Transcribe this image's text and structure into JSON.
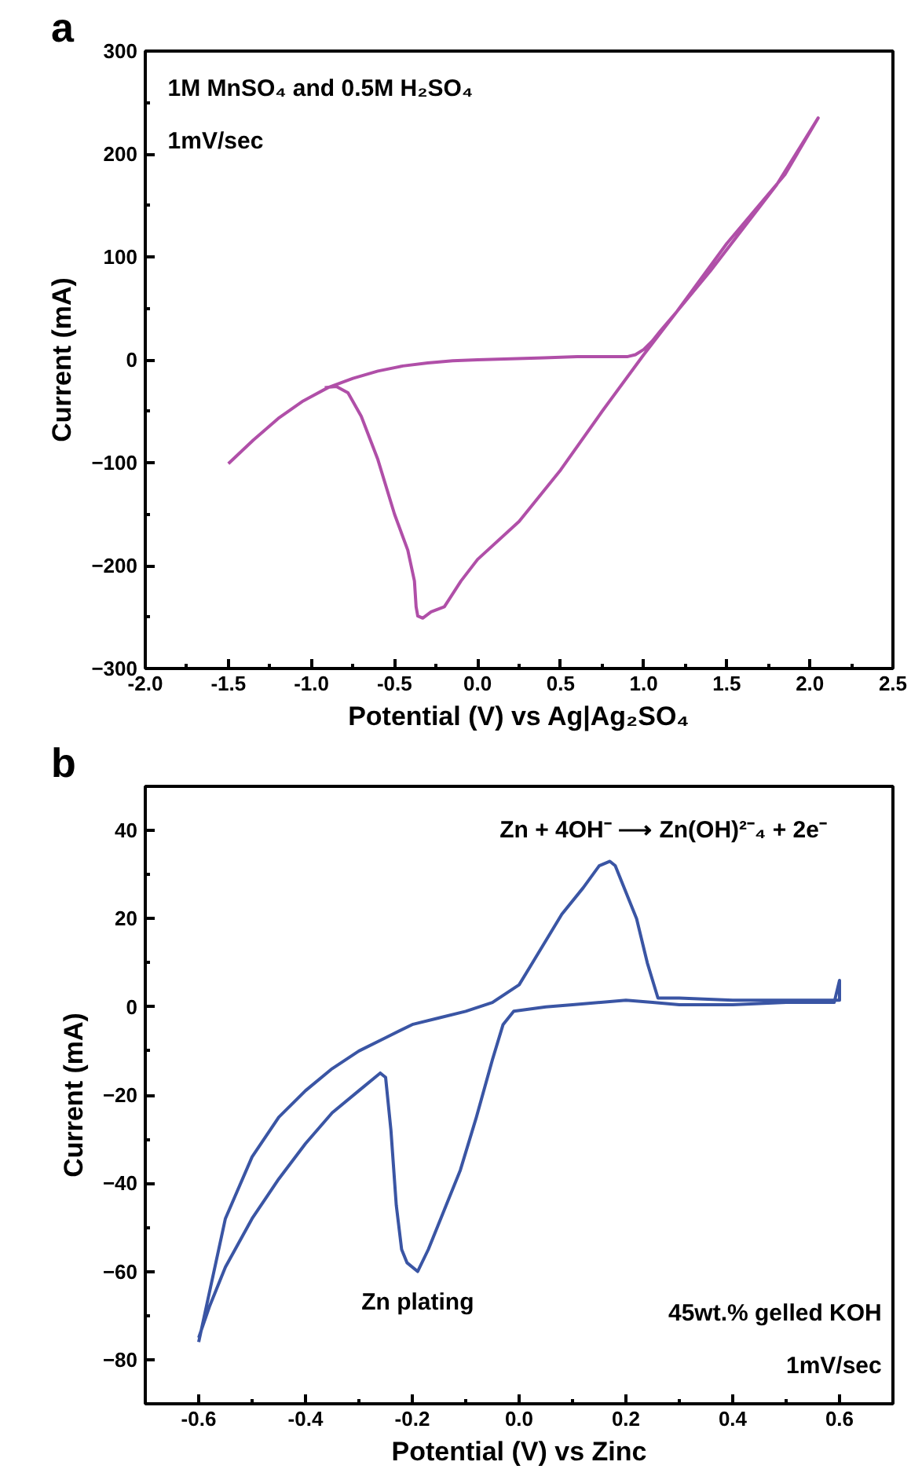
{
  "chart_data": [
    {
      "type": "line",
      "xlabel": "Potential (V) vs Ag|Ag₂SO₄",
      "ylabel": "Current (mA)",
      "annotations": [
        "a",
        "1M MnSO₄ and 0.5M H₂SO₄",
        "1mV/sec"
      ],
      "xlim": [
        -2.0,
        2.5
      ],
      "ylim": [
        -300,
        300
      ],
      "xticks": [
        {
          "value": -2.0,
          "label": "-2.0"
        },
        {
          "value": -1.5,
          "label": "-1.5"
        },
        {
          "value": -1.0,
          "label": "-1.0"
        },
        {
          "value": -0.5,
          "label": "-0.5"
        },
        {
          "value": 0.0,
          "label": "0.0"
        },
        {
          "value": 0.5,
          "label": "0.5"
        },
        {
          "value": 1.0,
          "label": "1.0"
        },
        {
          "value": 1.5,
          "label": "1.5"
        },
        {
          "value": 2.0,
          "label": "2.0"
        },
        {
          "value": 2.5,
          "label": "2.5"
        }
      ],
      "yticks": [
        -300,
        -200,
        -100,
        0,
        100,
        200,
        300
      ],
      "grid": false,
      "series": [
        {
          "color": "#b04fa8",
          "x": [
            -1.5,
            -1.35,
            -1.2,
            -1.05,
            -0.9,
            -0.75,
            -0.6,
            -0.45,
            -0.3,
            -0.15,
            0.0,
            0.2,
            0.4,
            0.6,
            0.8,
            0.9,
            0.95,
            1.0,
            1.05,
            1.1,
            1.2,
            1.4,
            1.6,
            1.8,
            2.05,
            1.85,
            1.5,
            1.2,
            1.0,
            0.75,
            0.5,
            0.25,
            0.0,
            -0.1,
            -0.2,
            -0.28,
            -0.33,
            -0.36,
            -0.37,
            -0.38,
            -0.42,
            -0.5,
            -0.6,
            -0.7,
            -0.78,
            -0.85,
            -0.92
          ],
          "values": [
            -101,
            -78,
            -57,
            -40,
            -27,
            -18,
            -11,
            -6,
            -3,
            -1,
            0,
            1,
            2,
            3,
            3,
            3,
            5,
            10,
            18,
            28,
            47,
            86,
            128,
            170,
            235,
            180,
            113,
            47,
            5,
            -50,
            -107,
            -157,
            -194,
            -215,
            -240,
            -245,
            -251,
            -249,
            -240,
            -215,
            -185,
            -150,
            -97,
            -55,
            -32,
            -26,
            -27
          ]
        }
      ]
    },
    {
      "type": "line",
      "xlabel": "Potential (V) vs Zinc",
      "ylabel": "Current (mA)",
      "annotations": [
        "b",
        {
          "text": "Zn + 4OH⁻ ⟶ Zn(OH)²⁻₄ + 2e⁻",
          "x": 0.17,
          "y": 33
        },
        {
          "text": "Zn plating",
          "x": -0.19,
          "y": -60
        },
        "45wt.% gelled KOH",
        "1mV/sec"
      ],
      "xlim": [
        -0.7,
        0.7
      ],
      "ylim": [
        -90,
        50
      ],
      "xticks": [
        {
          "value": -0.6,
          "label": "-0.6"
        },
        {
          "value": -0.4,
          "label": "-0.4"
        },
        {
          "value": -0.2,
          "label": "-0.2"
        },
        {
          "value": 0.0,
          "label": "0.0"
        },
        {
          "value": 0.2,
          "label": "0.2"
        },
        {
          "value": 0.4,
          "label": "0.4"
        },
        {
          "value": 0.6,
          "label": "0.6"
        }
      ],
      "yticks": [
        -80,
        -60,
        -40,
        -20,
        0,
        20,
        40
      ],
      "grid": false,
      "series": [
        {
          "color": "#3a55a4",
          "x": [
            -0.6,
            -0.58,
            -0.55,
            -0.5,
            -0.45,
            -0.4,
            -0.35,
            -0.3,
            -0.26,
            -0.25,
            -0.24,
            -0.23,
            -0.22,
            -0.21,
            -0.19,
            -0.17,
            -0.14,
            -0.11,
            -0.08,
            -0.05,
            -0.03,
            -0.01,
            0.05,
            0.1,
            0.2,
            0.25,
            0.3,
            0.4,
            0.5,
            0.59,
            0.6,
            0.6,
            0.59,
            0.5,
            0.4,
            0.3,
            0.26,
            0.24,
            0.22,
            0.2,
            0.18,
            0.17,
            0.15,
            0.12,
            0.08,
            0.05,
            0.02,
            0.0,
            -0.05,
            -0.1,
            -0.15,
            -0.2,
            -0.25,
            -0.3,
            -0.35,
            -0.4,
            -0.45,
            -0.5,
            -0.55,
            -0.6
          ],
          "values": [
            -75,
            -68,
            -59,
            -48,
            -39,
            -31,
            -24,
            -19,
            -15,
            -16,
            -28,
            -45,
            -55,
            -58,
            -60,
            -55,
            -46,
            -37,
            -25,
            -12,
            -4,
            -1,
            0,
            0.5,
            1.5,
            1,
            0.5,
            0.5,
            1,
            1,
            6,
            1.5,
            1.5,
            1.5,
            1.5,
            2,
            2,
            10,
            20,
            26,
            32,
            33,
            32,
            27,
            21,
            15,
            9,
            5,
            1,
            -1,
            -2.5,
            -4,
            -7,
            -10,
            -14,
            -19,
            -25,
            -34,
            -48,
            -76
          ]
        }
      ]
    }
  ]
}
